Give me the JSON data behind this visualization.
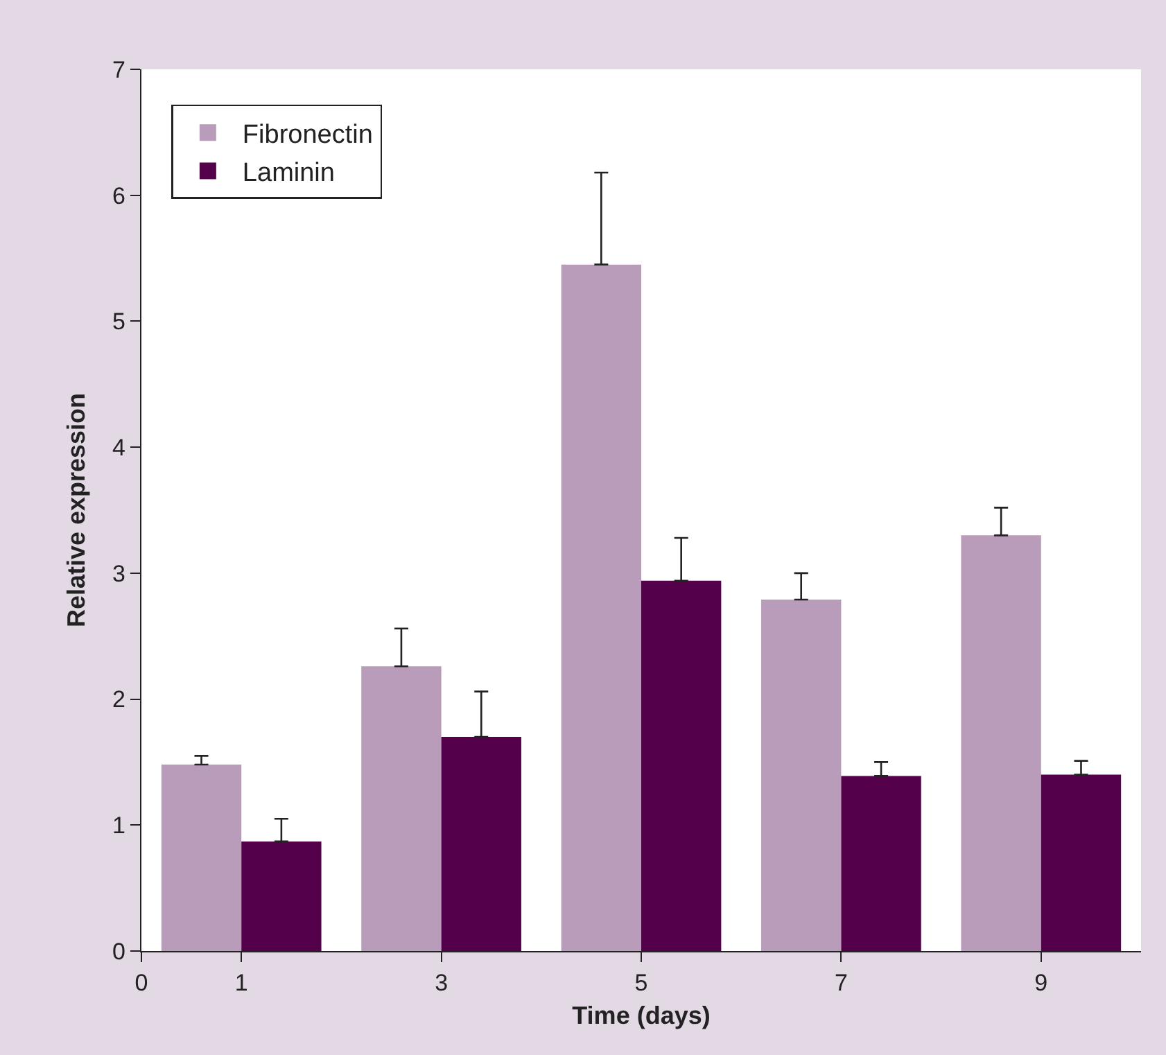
{
  "chart_data": {
    "type": "bar",
    "xlabel": "Time (days)",
    "ylabel": "Relative expression",
    "x": [
      1,
      3,
      5,
      7,
      9
    ],
    "series": [
      {
        "name": "Fibronectin",
        "color": "#b89cba",
        "values": [
          1.48,
          2.26,
          5.45,
          2.79,
          3.3
        ],
        "errors": [
          [
            1.48,
            1.55
          ],
          [
            2.26,
            2.56
          ],
          [
            5.45,
            6.18
          ],
          [
            2.79,
            3.0
          ],
          [
            3.3,
            3.52
          ]
        ]
      },
      {
        "name": "Laminin",
        "color": "#55004a",
        "values": [
          0.87,
          1.7,
          2.94,
          1.39,
          1.4
        ],
        "errors": [
          [
            0.87,
            1.05
          ],
          [
            1.7,
            2.06
          ],
          [
            2.94,
            3.28
          ],
          [
            1.39,
            1.5
          ],
          [
            1.4,
            1.51
          ]
        ]
      }
    ],
    "xlim": [
      0,
      10
    ],
    "xticks": [
      0,
      1,
      3,
      5,
      7,
      9
    ],
    "ylim": [
      0,
      7
    ],
    "yticks": [
      0,
      1,
      2,
      3,
      4,
      5,
      6,
      7
    ],
    "grid": false,
    "legend": "top left"
  }
}
